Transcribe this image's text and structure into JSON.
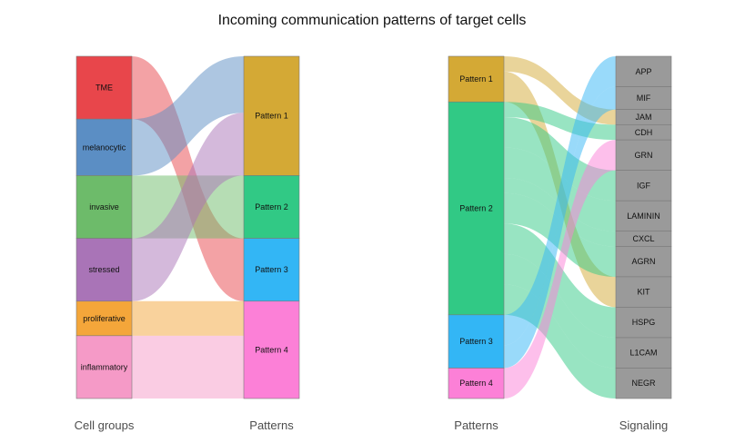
{
  "chart_data": {
    "type": "alluvial",
    "title": "Incoming communication patterns of target cells",
    "panels": [
      {
        "left_axis_label": "Cell groups",
        "right_axis_label": "Patterns",
        "left_nodes": [
          {
            "name": "TME",
            "weight": 1.0,
            "color": "#E8464B"
          },
          {
            "name": "melanocytic",
            "weight": 0.9,
            "color": "#5B8EC4"
          },
          {
            "name": "invasive",
            "weight": 1.0,
            "color": "#6DBB6A"
          },
          {
            "name": "stressed",
            "weight": 1.0,
            "color": "#A974B7"
          },
          {
            "name": "proliferative",
            "weight": 0.55,
            "color": "#F4A63A"
          },
          {
            "name": "inflammatory",
            "weight": 1.0,
            "color": "#F59AC7"
          }
        ],
        "right_nodes": [
          {
            "name": "Pattern 1",
            "weight": 1.9,
            "color": "#D4A935"
          },
          {
            "name": "Pattern 2",
            "weight": 1.0,
            "color": "#31C985"
          },
          {
            "name": "Pattern 3",
            "weight": 1.0,
            "color": "#33B6F5"
          },
          {
            "name": "Pattern 4",
            "weight": 1.55,
            "color": "#FC80D7"
          }
        ],
        "flows": [
          {
            "from": "TME",
            "to": "Pattern 3",
            "value": 1.0
          },
          {
            "from": "melanocytic",
            "to": "Pattern 1",
            "value": 0.9
          },
          {
            "from": "invasive",
            "to": "Pattern 2",
            "value": 1.0
          },
          {
            "from": "stressed",
            "to": "Pattern 1",
            "value": 1.0
          },
          {
            "from": "proliferative",
            "to": "Pattern 4",
            "value": 0.55
          },
          {
            "from": "inflammatory",
            "to": "Pattern 4",
            "value": 1.0
          }
        ]
      },
      {
        "left_axis_label": "Patterns",
        "right_axis_label": "Signaling",
        "left_nodes": [
          {
            "name": "Pattern 1",
            "weight": 1.5,
            "color": "#D4A935"
          },
          {
            "name": "Pattern 2",
            "weight": 7.0,
            "color": "#31C985"
          },
          {
            "name": "Pattern 3",
            "weight": 1.75,
            "color": "#33B6F5"
          },
          {
            "name": "Pattern 4",
            "weight": 1.0,
            "color": "#FC80D7"
          }
        ],
        "right_nodes": [
          {
            "name": "APP",
            "weight": 1.0,
            "color": "#9A9A9A"
          },
          {
            "name": "MIF",
            "weight": 0.75,
            "color": "#9A9A9A"
          },
          {
            "name": "JAM",
            "weight": 0.5,
            "color": "#9A9A9A"
          },
          {
            "name": "CDH",
            "weight": 0.5,
            "color": "#9A9A9A"
          },
          {
            "name": "GRN",
            "weight": 1.0,
            "color": "#9A9A9A"
          },
          {
            "name": "IGF",
            "weight": 1.0,
            "color": "#9A9A9A"
          },
          {
            "name": "LAMININ",
            "weight": 1.0,
            "color": "#9A9A9A"
          },
          {
            "name": "CXCL",
            "weight": 0.5,
            "color": "#9A9A9A"
          },
          {
            "name": "AGRN",
            "weight": 1.0,
            "color": "#9A9A9A"
          },
          {
            "name": "KIT",
            "weight": 1.0,
            "color": "#9A9A9A"
          },
          {
            "name": "HSPG",
            "weight": 1.0,
            "color": "#9A9A9A"
          },
          {
            "name": "L1CAM",
            "weight": 1.0,
            "color": "#9A9A9A"
          },
          {
            "name": "NEGR",
            "weight": 1.0,
            "color": "#9A9A9A"
          }
        ],
        "flows": [
          {
            "from": "Pattern 1",
            "to": "JAM",
            "value": 0.5
          },
          {
            "from": "Pattern 1",
            "to": "KIT",
            "value": 1.0
          },
          {
            "from": "Pattern 2",
            "to": "CDH",
            "value": 0.5
          },
          {
            "from": "Pattern 2",
            "to": "IGF",
            "value": 1.0
          },
          {
            "from": "Pattern 2",
            "to": "LAMININ",
            "value": 1.0
          },
          {
            "from": "Pattern 2",
            "to": "CXCL",
            "value": 0.5
          },
          {
            "from": "Pattern 2",
            "to": "AGRN",
            "value": 1.0
          },
          {
            "from": "Pattern 2",
            "to": "HSPG",
            "value": 1.0
          },
          {
            "from": "Pattern 2",
            "to": "L1CAM",
            "value": 1.0
          },
          {
            "from": "Pattern 2",
            "to": "NEGR",
            "value": 1.0
          },
          {
            "from": "Pattern 3",
            "to": "APP",
            "value": 1.0
          },
          {
            "from": "Pattern 3",
            "to": "MIF",
            "value": 0.75
          },
          {
            "from": "Pattern 4",
            "to": "GRN",
            "value": 1.0
          }
        ]
      }
    ]
  }
}
